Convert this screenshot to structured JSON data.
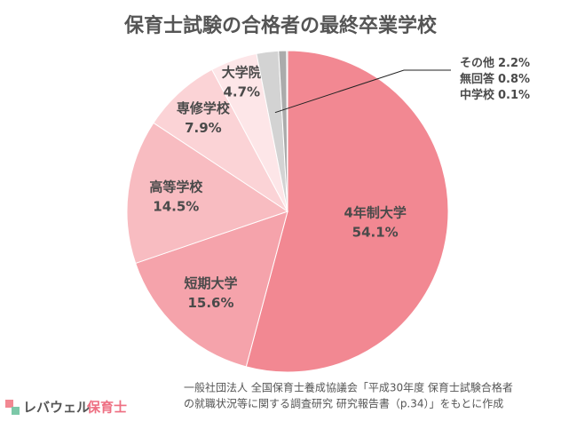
{
  "chart_data": {
    "type": "pie",
    "title": "保育士試験の合格者の最終卒業学校",
    "categories": [
      "4年制大学",
      "短期大学",
      "高等学校",
      "専修学校",
      "大学院",
      "その他",
      "無回答",
      "中学校"
    ],
    "values": [
      54.1,
      15.6,
      14.5,
      7.9,
      4.7,
      2.2,
      0.8,
      0.1
    ],
    "value_labels": [
      "54.1%",
      "15.6%",
      "14.5%",
      "7.9%",
      "4.7%",
      "2.2%",
      "0.8%",
      "0.1%"
    ],
    "colors": [
      "#f28892",
      "#f5a3ab",
      "#f8bcc1",
      "#fbd3d6",
      "#fde6e8",
      "#d3d3d3",
      "#ababab",
      "#7f7f7f"
    ],
    "source": [
      "一般社団法人 全国保育士養成協議会「平成30年度 保育士試験合格者",
      "の就職状況等に関する調査研究 研究報告書（p.34）」をもとに作成"
    ],
    "logo": [
      "レバウェル",
      "保育士"
    ]
  }
}
